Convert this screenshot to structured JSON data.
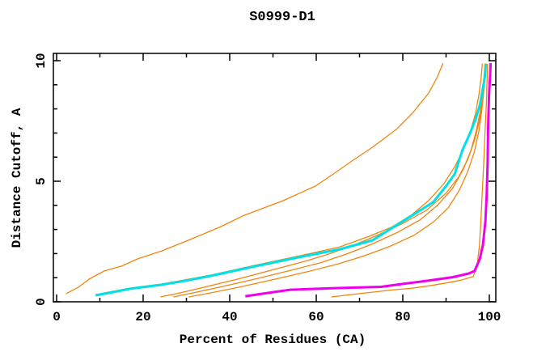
{
  "window": {
    "background_color": "#ffffff",
    "frame_color": "#000000"
  },
  "chart_data": {
    "type": "line",
    "title": "S0999-D1",
    "xlabel": "Percent of Residues (CA)",
    "ylabel": "Distance Cutoff, A",
    "xlim": [
      0,
      100
    ],
    "ylim": [
      0,
      10
    ],
    "grid": false,
    "legend": "none",
    "x_ticks": {
      "major": [
        0,
        20,
        40,
        60,
        80,
        100
      ],
      "major_labels": [
        "0",
        "20",
        "40",
        "60",
        "80",
        "100"
      ],
      "minor": [
        10,
        30,
        50,
        70,
        90
      ]
    },
    "y_ticks": {
      "major": [
        0,
        5,
        10
      ],
      "major_labels": [
        "0",
        "5",
        "10"
      ],
      "minor": [
        1,
        2,
        3,
        4,
        6,
        7,
        8,
        9
      ]
    },
    "series": [
      {
        "name": "orange-model-1",
        "color": "#f08510",
        "stroke_width": 1.3,
        "points": [
          [
            2.2,
            0.34
          ],
          [
            5,
            0.6
          ],
          [
            7.5,
            0.94
          ],
          [
            11,
            1.28
          ],
          [
            15,
            1.48
          ],
          [
            18.7,
            1.78
          ],
          [
            24.3,
            2.11
          ],
          [
            30,
            2.52
          ],
          [
            33.6,
            2.79
          ],
          [
            38,
            3.12
          ],
          [
            43,
            3.56
          ],
          [
            52.3,
            4.19
          ],
          [
            59.8,
            4.8
          ],
          [
            64.5,
            5.37
          ],
          [
            68,
            5.81
          ],
          [
            73,
            6.41
          ],
          [
            78.5,
            7.15
          ],
          [
            82.2,
            7.82
          ],
          [
            86,
            8.66
          ],
          [
            88,
            9.33
          ],
          [
            89.3,
            9.9
          ]
        ]
      },
      {
        "name": "orange-model-2",
        "color": "#f08510",
        "stroke_width": 1.3,
        "points": [
          [
            9,
            0.3
          ],
          [
            17,
            0.57
          ],
          [
            24.5,
            0.74
          ],
          [
            36,
            1.12
          ],
          [
            45.5,
            1.5
          ],
          [
            56.5,
            1.92
          ],
          [
            65.5,
            2.28
          ],
          [
            72,
            2.7
          ],
          [
            77.5,
            3.1
          ],
          [
            82,
            3.6
          ],
          [
            86,
            4.2
          ],
          [
            89.5,
            4.9
          ],
          [
            92,
            5.6
          ],
          [
            94,
            6.3
          ],
          [
            95.5,
            7.0
          ],
          [
            96.8,
            7.8
          ],
          [
            97.6,
            8.6
          ],
          [
            98.1,
            9.3
          ],
          [
            98.4,
            9.88
          ]
        ]
      },
      {
        "name": "orange-model-3",
        "color": "#f08510",
        "stroke_width": 1.3,
        "points": [
          [
            24,
            0.2
          ],
          [
            28,
            0.35
          ],
          [
            34,
            0.6
          ],
          [
            42,
            0.95
          ],
          [
            50,
            1.33
          ],
          [
            57,
            1.66
          ],
          [
            62,
            1.93
          ],
          [
            68,
            2.3
          ],
          [
            74,
            2.75
          ],
          [
            80,
            3.25
          ],
          [
            85.5,
            3.8
          ],
          [
            90,
            4.5
          ],
          [
            93,
            5.2
          ],
          [
            95,
            5.9
          ],
          [
            96.6,
            6.7
          ],
          [
            97.7,
            7.5
          ],
          [
            98.4,
            8.3
          ],
          [
            98.9,
            9.1
          ],
          [
            99.2,
            9.88
          ]
        ]
      },
      {
        "name": "orange-model-4",
        "color": "#f08510",
        "stroke_width": 1.3,
        "points": [
          [
            27,
            0.2
          ],
          [
            31,
            0.35
          ],
          [
            38,
            0.62
          ],
          [
            46,
            0.95
          ],
          [
            54,
            1.3
          ],
          [
            61,
            1.62
          ],
          [
            67,
            1.98
          ],
          [
            73,
            2.4
          ],
          [
            79,
            2.9
          ],
          [
            84,
            3.4
          ],
          [
            88,
            4.0
          ],
          [
            91.5,
            4.7
          ],
          [
            94,
            5.5
          ],
          [
            95.8,
            6.3
          ],
          [
            97,
            7.1
          ],
          [
            97.9,
            7.9
          ],
          [
            98.5,
            8.8
          ],
          [
            98.9,
            9.6
          ],
          [
            99,
            9.88
          ]
        ]
      },
      {
        "name": "orange-model-5",
        "color": "#f08510",
        "stroke_width": 1.3,
        "points": [
          [
            30.5,
            0.2
          ],
          [
            35,
            0.35
          ],
          [
            42,
            0.6
          ],
          [
            50,
            0.92
          ],
          [
            58,
            1.25
          ],
          [
            65,
            1.57
          ],
          [
            71,
            1.9
          ],
          [
            77,
            2.3
          ],
          [
            82.5,
            2.75
          ],
          [
            87,
            3.3
          ],
          [
            90.5,
            3.9
          ],
          [
            93,
            4.6
          ],
          [
            95,
            5.4
          ],
          [
            96.5,
            6.2
          ],
          [
            97.6,
            7.1
          ],
          [
            98.3,
            8.0
          ],
          [
            98.8,
            8.9
          ],
          [
            99.1,
            9.88
          ]
        ]
      },
      {
        "name": "orange-model-6",
        "color": "#f08510",
        "stroke_width": 1.3,
        "points": [
          [
            63.5,
            0.2
          ],
          [
            68,
            0.3
          ],
          [
            73,
            0.4
          ],
          [
            78,
            0.5
          ],
          [
            82,
            0.56
          ],
          [
            86,
            0.66
          ],
          [
            90,
            0.78
          ],
          [
            93.5,
            0.9
          ],
          [
            96.3,
            1.05
          ],
          [
            97.2,
            1.55
          ],
          [
            97.7,
            2.3
          ],
          [
            98,
            3.2
          ],
          [
            98.3,
            4.3
          ],
          [
            98.7,
            5.7
          ],
          [
            99,
            7.0
          ],
          [
            99.3,
            8.2
          ],
          [
            99.5,
            9.3
          ],
          [
            99.6,
            9.88
          ]
        ]
      },
      {
        "name": "cyan-model",
        "color": "#00e0e8",
        "stroke_width": 3,
        "points": [
          [
            9,
            0.27
          ],
          [
            13,
            0.4
          ],
          [
            17,
            0.54
          ],
          [
            24,
            0.7
          ],
          [
            30,
            0.88
          ],
          [
            35.5,
            1.07
          ],
          [
            45,
            1.44
          ],
          [
            56,
            1.85
          ],
          [
            65.5,
            2.18
          ],
          [
            73,
            2.55
          ],
          [
            81,
            3.45
          ],
          [
            87,
            4.13
          ],
          [
            90,
            4.8
          ],
          [
            92,
            5.3
          ],
          [
            93.8,
            6.3
          ],
          [
            95.3,
            6.9
          ],
          [
            96.8,
            7.55
          ],
          [
            97.8,
            8.15
          ],
          [
            98.5,
            8.85
          ],
          [
            99,
            9.35
          ],
          [
            99.2,
            9.87
          ]
        ]
      },
      {
        "name": "magenta-model",
        "color": "#ee00ee",
        "stroke_width": 3,
        "points": [
          [
            43.6,
            0.23
          ],
          [
            50,
            0.4
          ],
          [
            54,
            0.5
          ],
          [
            65,
            0.57
          ],
          [
            75,
            0.62
          ],
          [
            80,
            0.74
          ],
          [
            86,
            0.88
          ],
          [
            91.5,
            1.02
          ],
          [
            95.2,
            1.17
          ],
          [
            96.6,
            1.28
          ],
          [
            97.8,
            1.78
          ],
          [
            98.5,
            2.35
          ],
          [
            99.1,
            3.36
          ],
          [
            99.4,
            4.5
          ],
          [
            99.6,
            5.8
          ],
          [
            99.7,
            7.1
          ],
          [
            99.9,
            8.5
          ],
          [
            100.2,
            9.5
          ],
          [
            100.3,
            9.9
          ]
        ]
      }
    ]
  }
}
